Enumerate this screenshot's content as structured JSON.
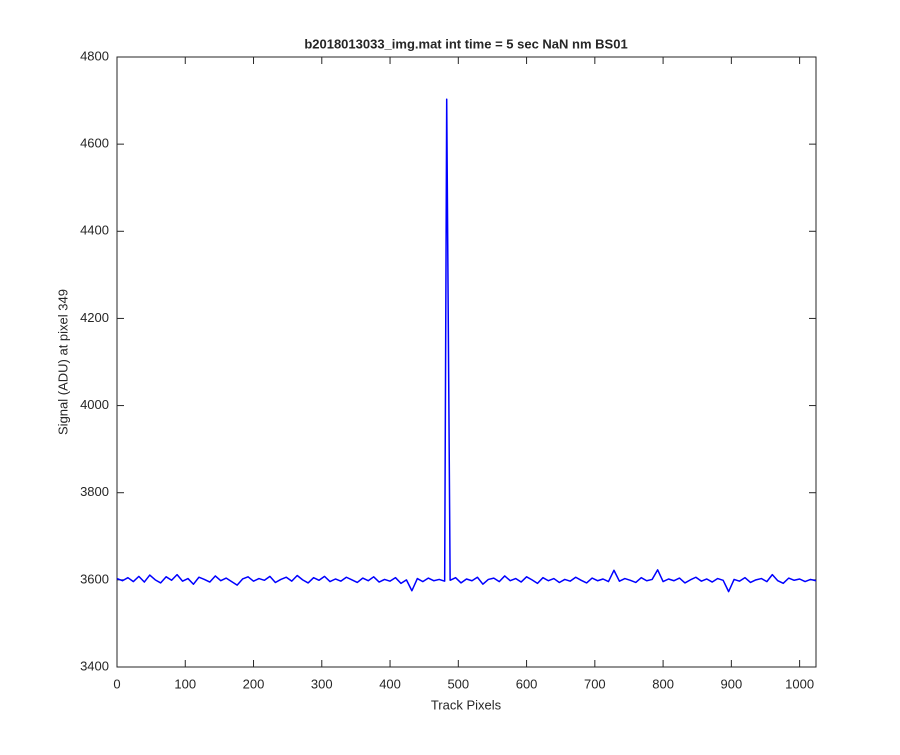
{
  "chart_data": {
    "type": "line",
    "title": "b2018013033_img.mat int time = 5 sec  NaN nm BS01",
    "x_label": "Track Pixels",
    "y_label": "Signal (ADU) at pixel 349",
    "xlim": [
      0,
      1024
    ],
    "ylim": [
      3400,
      4800
    ],
    "xticks": [
      0,
      100,
      200,
      300,
      400,
      500,
      600,
      700,
      800,
      900,
      1000
    ],
    "yticks": [
      3400,
      3600,
      3800,
      4000,
      4200,
      4400,
      4600,
      4800
    ],
    "grid": false,
    "x": [
      0,
      8,
      16,
      24,
      32,
      40,
      48,
      56,
      64,
      72,
      80,
      88,
      96,
      104,
      112,
      120,
      128,
      136,
      144,
      152,
      160,
      168,
      176,
      184,
      192,
      200,
      208,
      216,
      224,
      232,
      240,
      248,
      256,
      264,
      272,
      280,
      288,
      296,
      304,
      312,
      320,
      328,
      336,
      344,
      352,
      360,
      368,
      376,
      384,
      392,
      400,
      408,
      416,
      424,
      432,
      440,
      448,
      456,
      464,
      472,
      480,
      483,
      488,
      496,
      504,
      512,
      520,
      528,
      536,
      544,
      552,
      560,
      568,
      576,
      584,
      592,
      600,
      608,
      616,
      624,
      632,
      640,
      648,
      656,
      664,
      672,
      680,
      688,
      696,
      704,
      712,
      720,
      728,
      736,
      744,
      752,
      760,
      768,
      776,
      784,
      792,
      800,
      808,
      816,
      824,
      832,
      840,
      848,
      856,
      864,
      872,
      880,
      888,
      896,
      904,
      912,
      920,
      928,
      936,
      944,
      952,
      960,
      968,
      976,
      984,
      992,
      1000,
      1008,
      1016,
      1024
    ],
    "series": [
      {
        "name": "Signal",
        "color": "#0000ff",
        "values": [
          3603,
          3598,
          3605,
          3596,
          3608,
          3595,
          3611,
          3600,
          3593,
          3607,
          3599,
          3612,
          3597,
          3603,
          3590,
          3606,
          3601,
          3595,
          3609,
          3598,
          3604,
          3596,
          3588,
          3602,
          3607,
          3597,
          3603,
          3599,
          3608,
          3594,
          3601,
          3606,
          3597,
          3610,
          3600,
          3593,
          3605,
          3599,
          3608,
          3596,
          3602,
          3597,
          3606,
          3600,
          3594,
          3604,
          3598,
          3607,
          3595,
          3601,
          3597,
          3605,
          3592,
          3600,
          3575,
          3603,
          3596,
          3604,
          3598,
          3601,
          3597,
          4703,
          3599,
          3605,
          3593,
          3602,
          3598,
          3606,
          3590,
          3601,
          3604,
          3596,
          3609,
          3598,
          3603,
          3595,
          3607,
          3600,
          3592,
          3605,
          3598,
          3603,
          3594,
          3601,
          3597,
          3606,
          3599,
          3593,
          3604,
          3598,
          3602,
          3596,
          3622,
          3597,
          3603,
          3599,
          3594,
          3605,
          3598,
          3601,
          3623,
          3596,
          3602,
          3598,
          3604,
          3593,
          3600,
          3606,
          3597,
          3602,
          3595,
          3603,
          3599,
          3573,
          3601,
          3597,
          3605,
          3594,
          3600,
          3603,
          3596,
          3612,
          3598,
          3592,
          3604,
          3599,
          3602,
          3596,
          3601,
          3598
        ]
      }
    ]
  }
}
